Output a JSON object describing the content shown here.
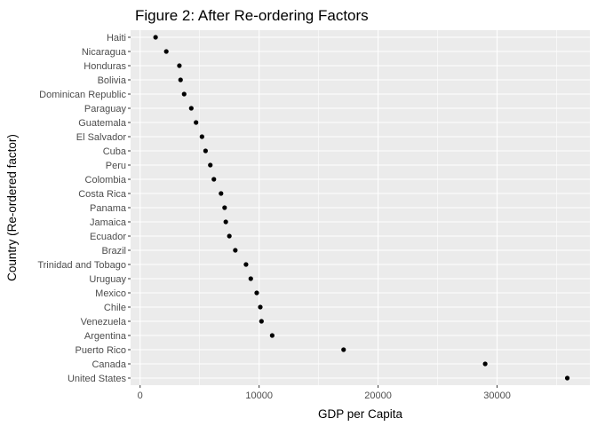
{
  "chart_data": {
    "type": "scatter",
    "title": "Figure 2: After Re-ordering Factors",
    "xlabel": "GDP per Capita",
    "ylabel": "Country (Re-ordered factor)",
    "xlim": [
      -800,
      37800
    ],
    "x_ticks": [
      0,
      10000,
      20000,
      30000
    ],
    "x_tick_labels": [
      "0",
      "10000",
      "20000",
      "30000"
    ],
    "grid": true,
    "legend": "none",
    "colors": {
      "panel": "#ebebeb",
      "grid_major": "#ffffff",
      "point": "#000000",
      "tick_text": "#4d4d4d"
    },
    "categories": [
      "Haiti",
      "Nicaragua",
      "Honduras",
      "Bolivia",
      "Dominican Republic",
      "Paraguay",
      "Guatemala",
      "El Salvador",
      "Cuba",
      "Peru",
      "Colombia",
      "Costa Rica",
      "Panama",
      "Jamaica",
      "Ecuador",
      "Brazil",
      "Trinidad and Tobago",
      "Uruguay",
      "Mexico",
      "Chile",
      "Venezuela",
      "Argentina",
      "Puerto Rico",
      "Canada",
      "United States"
    ],
    "values": [
      1300,
      2200,
      3300,
      3400,
      3700,
      4300,
      4700,
      5200,
      5500,
      5900,
      6200,
      6800,
      7100,
      7200,
      7500,
      8000,
      8900,
      9300,
      9800,
      10100,
      10200,
      11100,
      17100,
      29000,
      35900
    ]
  }
}
